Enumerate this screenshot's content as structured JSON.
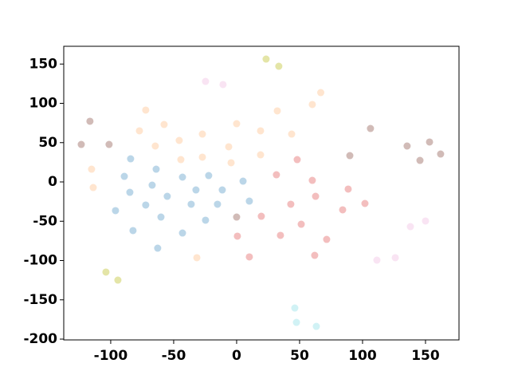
{
  "chart_data": {
    "type": "scatter",
    "xlim": [
      -137.3,
      176.6
    ],
    "ylim": [
      -201,
      172.6
    ],
    "xticks": [
      -100,
      -50,
      0,
      50,
      100,
      150
    ],
    "yticks": [
      -200,
      -150,
      -100,
      -50,
      0,
      50,
      100,
      150
    ],
    "series": [
      {
        "color": "#1f77b4",
        "opacity": 0.3,
        "x": [
          -84.2,
          -89.2,
          -63.9,
          -84.8,
          -67.1,
          -55.1,
          -96.2,
          -72.2,
          -60.1,
          -82.3,
          -43.0,
          -32.3,
          -22.2,
          -11.4,
          -36.1,
          -15.2,
          -24.7,
          -43.0,
          -62.7,
          5.1,
          10.1
        ],
        "y": [
          29.4,
          7.1,
          16.2,
          -13.2,
          -4.1,
          -18.3,
          -36.5,
          -29.4,
          -44.7,
          -61.9,
          6.1,
          -10.2,
          8.1,
          -10.2,
          -28.4,
          -28.4,
          -48.7,
          -65.0,
          -84.3,
          1.0,
          -24.4
        ]
      },
      {
        "color": "#ff7f0e",
        "opacity": 0.2,
        "x": [
          -72.2,
          -77.2,
          -57.6,
          -64.6,
          -45.6,
          -27.2,
          -44.3,
          -27.2,
          -6.3,
          -4.4,
          0,
          19.0,
          19.0,
          32.3,
          43.7,
          60.1,
          66.8,
          -115.2,
          -113.9,
          -31.6
        ],
        "y": [
          91.4,
          65.0,
          73.1,
          45.7,
          52.8,
          60.9,
          28.4,
          31.5,
          44.7,
          24.4,
          74.1,
          65.0,
          34.5,
          90.4,
          60.9,
          98.5,
          113.7,
          16.2,
          -7.1,
          -96.4
        ]
      },
      {
        "color": "#d62728",
        "opacity": 0.3,
        "x": [
          31.6,
          48.1,
          60.1,
          62.7,
          43.0,
          19.6,
          88.6,
          101.9,
          84.2,
          51.3,
          34.8,
          0.6,
          71.5,
          10.1,
          62.0
        ],
        "y": [
          9.1,
          28.4,
          2.0,
          -18.3,
          -28.4,
          -43.7,
          -9.1,
          -27.4,
          -35.5,
          -53.8,
          -68.0,
          -69.0,
          -73.1,
          -95.4,
          -93.4
        ]
      },
      {
        "color": "#8c564b",
        "opacity": 0.4,
        "x": [
          0,
          -116.5,
          -123.4,
          -101.3,
          106.3,
          89.9,
          135.4,
          145.6,
          153.2,
          162.0
        ],
        "y": [
          -44.7,
          77.2,
          47.7,
          47.7,
          68.0,
          33.5,
          45.7,
          27.4,
          50.8,
          35.5
        ]
      },
      {
        "color": "#e377c2",
        "opacity": 0.2,
        "x": [
          -24.7,
          -10.8,
          111.4,
          126.0,
          138.0,
          150.0
        ],
        "y": [
          127.9,
          123.9,
          -99.5,
          -96.4,
          -56.9,
          -49.7
        ]
      },
      {
        "color": "#bcbd22",
        "opacity": 0.4,
        "x": [
          23.4,
          33.5,
          -103.8,
          -94.3
        ],
        "y": [
          156.3,
          147.2,
          -114.7,
          -124.9
        ]
      },
      {
        "color": "#17becf",
        "opacity": 0.2,
        "x": [
          46.2,
          47.5,
          63.3
        ],
        "y": [
          -160.4,
          -178.7,
          -183.8
        ]
      }
    ]
  }
}
